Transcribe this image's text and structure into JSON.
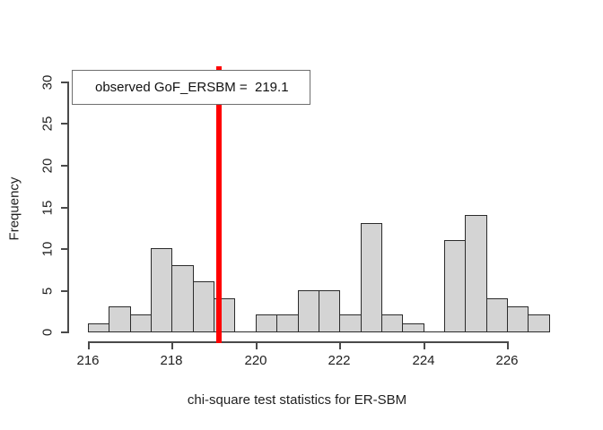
{
  "chart_data": {
    "type": "bar",
    "subtype": "histogram",
    "title": "",
    "xlabel": "chi-square test statistics for ER-SBM",
    "ylabel": "Frequency",
    "bins": {
      "start": 216,
      "width": 0.5
    },
    "categories": [
      "216-216.5",
      "216.5-217",
      "217-217.5",
      "217.5-218",
      "218-218.5",
      "218.5-219",
      "219-219.5",
      "219.5-220",
      "220-220.5",
      "220.5-221",
      "221-221.5",
      "221.5-222",
      "222-222.5",
      "222.5-223",
      "223-223.5",
      "223.5-224",
      "224-224.5",
      "224.5-225",
      "225-225.5",
      "225.5-226",
      "226-226.5",
      "226.5-227"
    ],
    "values": [
      1,
      3,
      2,
      10,
      8,
      6,
      4,
      0,
      2,
      2,
      5,
      5,
      2,
      13,
      2,
      1,
      0,
      11,
      14,
      4,
      3,
      2
    ],
    "x_ticks": [
      216,
      218,
      220,
      222,
      224,
      226
    ],
    "y_ticks": [
      0,
      5,
      10,
      15,
      20,
      25,
      30
    ],
    "xlim": [
      216,
      227
    ],
    "ylim": [
      0,
      30
    ],
    "grid": false,
    "legend_position": "topleft",
    "bar_fill": "#d4d4d4",
    "bar_border": "#2b2b2b",
    "vline": {
      "x": 219.1,
      "color": "#ff0000"
    },
    "legend": {
      "label": "observed GoF_ERSBM =  219.1"
    }
  }
}
